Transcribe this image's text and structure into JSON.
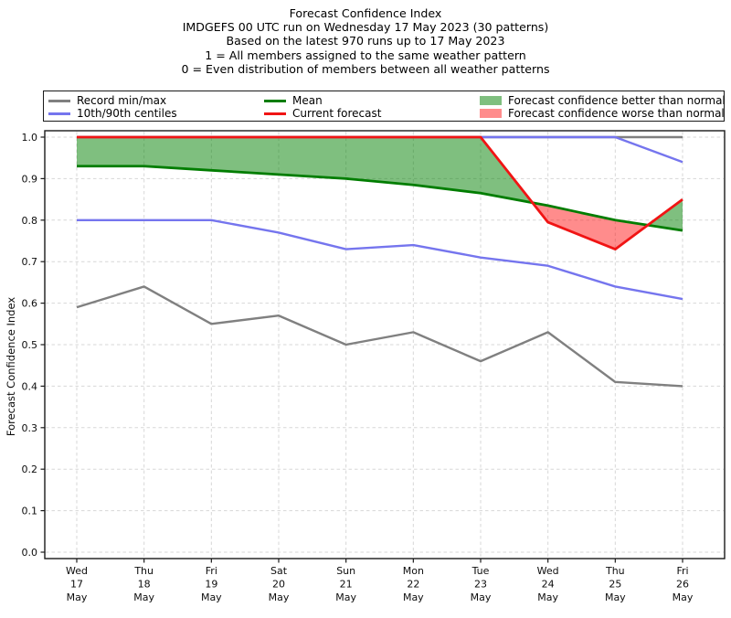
{
  "title": "Forecast Confidence Index",
  "subtitle_lines": [
    "IMDGEFS 00 UTC run on Wednesday 17 May 2023 (30 patterns)",
    "Based on the latest 970 runs up to 17 May 2023",
    "1 = All members assigned to the same weather pattern",
    "0 = Even distribution of members between all weather patterns"
  ],
  "legend": {
    "items": [
      {
        "label": "Record min/max",
        "type": "line",
        "color": "#808080"
      },
      {
        "label": "10th/90th centiles",
        "type": "line",
        "color": "#7575ee"
      },
      {
        "label": "Mean",
        "type": "line",
        "color": "#007d00"
      },
      {
        "label": "Current forecast",
        "type": "line",
        "color": "#f01414"
      },
      {
        "label": "Forecast confidence better than normal",
        "type": "patch",
        "color": "rgba(0,128,0,0.5)"
      },
      {
        "label": "Forecast confidence worse than normal",
        "type": "patch",
        "color": "rgba(255,0,0,0.45)"
      }
    ]
  },
  "colors": {
    "record": "#808080",
    "centiles": "#7575ee",
    "mean": "#007d00",
    "current": "#f01414",
    "better_fill": "rgba(0,128,0,0.5)",
    "worse_fill": "rgba(255,0,0,0.45)",
    "grid": "#d7d7d7",
    "axis": "#1a1a1a"
  },
  "chart_data": {
    "type": "line",
    "title": "Forecast Confidence Index",
    "ylabel": "Forecast Confidence Index",
    "ylim": [
      0.0,
      1.0
    ],
    "yticks": [
      0.0,
      0.1,
      0.2,
      0.3,
      0.4,
      0.5,
      0.6,
      0.7,
      0.8,
      0.9,
      1.0
    ],
    "grid": true,
    "legend_position": "top",
    "categories": [
      [
        "Wed",
        "17",
        "May"
      ],
      [
        "Thu",
        "18",
        "May"
      ],
      [
        "Fri",
        "19",
        "May"
      ],
      [
        "Sat",
        "20",
        "May"
      ],
      [
        "Sun",
        "21",
        "May"
      ],
      [
        "Mon",
        "22",
        "May"
      ],
      [
        "Tue",
        "23",
        "May"
      ],
      [
        "Wed",
        "24",
        "May"
      ],
      [
        "Thu",
        "25",
        "May"
      ],
      [
        "Fri",
        "26",
        "May"
      ]
    ],
    "series": [
      {
        "key": "record_max",
        "name": "Record max",
        "values": [
          1.0,
          1.0,
          1.0,
          1.0,
          1.0,
          1.0,
          1.0,
          1.0,
          1.0,
          1.0
        ]
      },
      {
        "key": "record_min",
        "name": "Record min",
        "values": [
          0.59,
          0.64,
          0.55,
          0.57,
          0.5,
          0.53,
          0.46,
          0.53,
          0.41,
          0.4
        ]
      },
      {
        "key": "centile_90",
        "name": "90th centile",
        "values": [
          1.0,
          1.0,
          1.0,
          1.0,
          1.0,
          1.0,
          1.0,
          1.0,
          1.0,
          0.94
        ]
      },
      {
        "key": "centile_10",
        "name": "10th centile",
        "values": [
          0.8,
          0.8,
          0.8,
          0.77,
          0.73,
          0.74,
          0.71,
          0.69,
          0.64,
          0.61
        ]
      },
      {
        "key": "mean",
        "name": "Mean",
        "values": [
          0.93,
          0.93,
          0.92,
          0.91,
          0.9,
          0.885,
          0.865,
          0.835,
          0.8,
          0.775
        ]
      },
      {
        "key": "current",
        "name": "Current forecast",
        "values": [
          1.0,
          1.0,
          1.0,
          1.0,
          1.0,
          1.0,
          1.0,
          0.795,
          0.73,
          0.85
        ]
      }
    ],
    "fill_between": {
      "upper": "current",
      "lower": "mean",
      "positive_label": "Forecast confidence better than normal",
      "negative_label": "Forecast confidence worse than normal"
    }
  }
}
